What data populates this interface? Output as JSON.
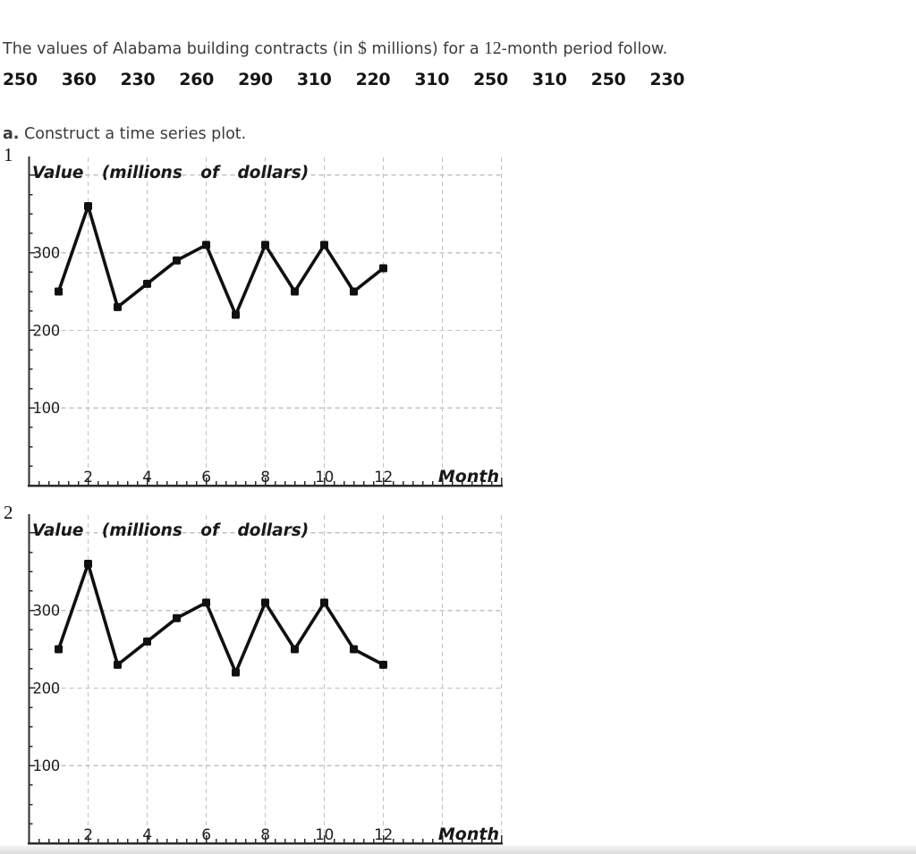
{
  "problem": {
    "intro_prefix": "The values of Alabama building contracts (in ",
    "dollar_sign": "$",
    "intro_mid": " millions) for a ",
    "twelve": "12",
    "intro_suffix": "-month period follow.",
    "data_values": [
      "250",
      "360",
      "230",
      "260",
      "290",
      "310",
      "220",
      "310",
      "250",
      "310",
      "250",
      "230"
    ],
    "part_label": "a.",
    "part_text": " Construct a time series plot."
  },
  "colors": {
    "grid": "#c2c2c2",
    "axis": "#2b2b2b",
    "series": "#101010",
    "text": "#1e1e1e"
  },
  "chart_data": [
    {
      "type": "line",
      "option_label": "1",
      "title": "Value (millions of dollars)",
      "xlabel": "Month",
      "ylabel": "Value (millions of dollars)",
      "x": [
        1,
        2,
        3,
        4,
        5,
        6,
        7,
        8,
        9,
        10,
        11,
        12
      ],
      "values": [
        250,
        360,
        230,
        260,
        290,
        310,
        220,
        310,
        250,
        310,
        250,
        280
      ],
      "xlim": [
        0,
        16
      ],
      "ylim": [
        0,
        420
      ],
      "xticks": [
        2,
        4,
        6,
        8,
        10,
        12
      ],
      "yticks": [
        100,
        200,
        300
      ],
      "grid": true,
      "legend": false,
      "marker": "square"
    },
    {
      "type": "line",
      "option_label": "2",
      "title": "Value (millions of dollars)",
      "xlabel": "Month",
      "ylabel": "Value (millions of dollars)",
      "x": [
        1,
        2,
        3,
        4,
        5,
        6,
        7,
        8,
        9,
        10,
        11,
        12
      ],
      "values": [
        250,
        360,
        230,
        260,
        290,
        310,
        220,
        310,
        250,
        310,
        250,
        230
      ],
      "xlim": [
        0,
        16
      ],
      "ylim": [
        0,
        420
      ],
      "xticks": [
        2,
        4,
        6,
        8,
        10,
        12
      ],
      "yticks": [
        100,
        200,
        300
      ],
      "grid": true,
      "legend": false,
      "marker": "square"
    }
  ]
}
